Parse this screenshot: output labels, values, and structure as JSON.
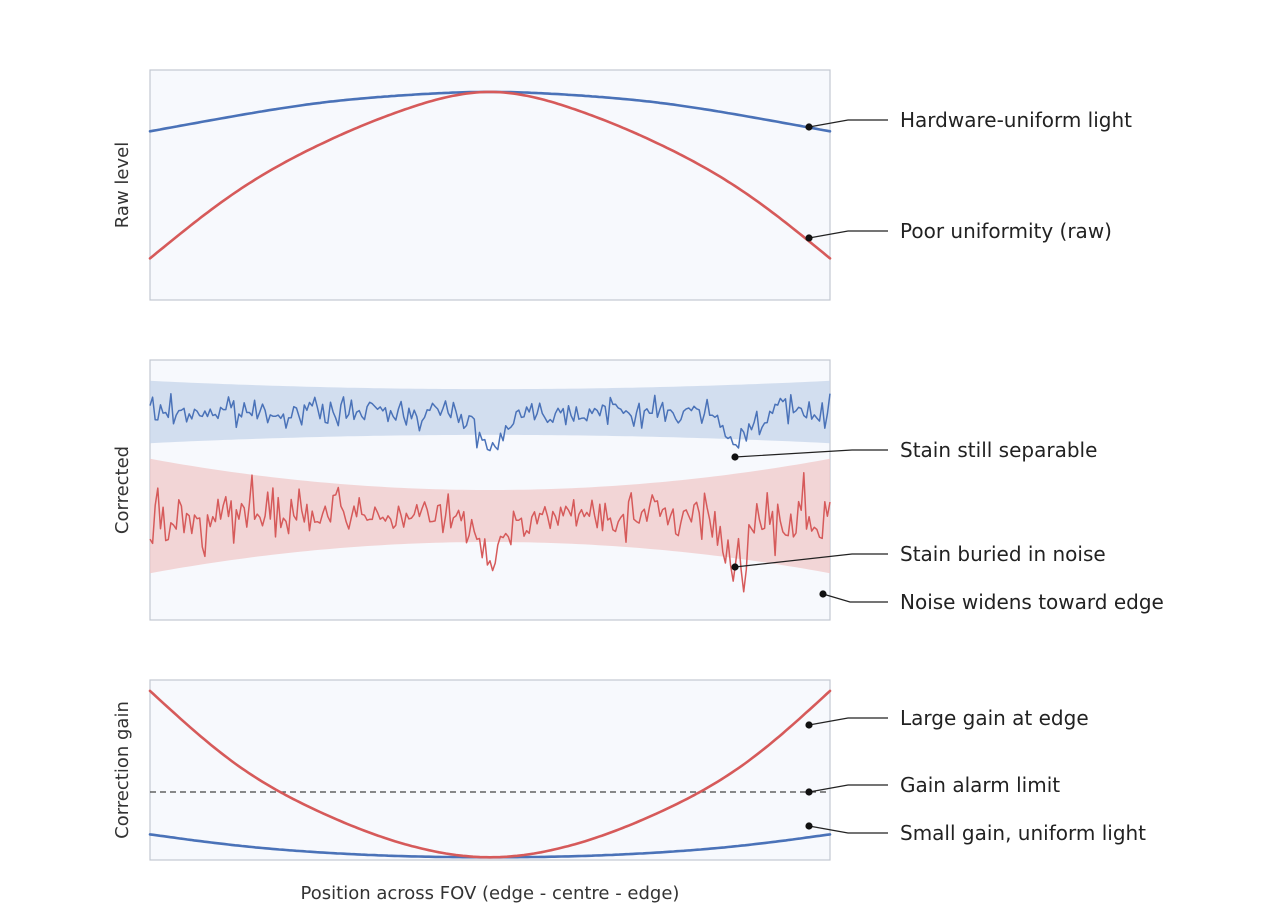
{
  "chart_data": [
    {
      "type": "line",
      "ylabel": "Raw level",
      "xlim": [
        -1,
        1
      ],
      "ylim": [
        0.0,
        1.05
      ],
      "series": [
        {
          "key": "uniform",
          "color": "#4a72b8",
          "x": [
            -1,
            -0.75,
            -0.5,
            -0.25,
            0,
            0.25,
            0.5,
            0.75,
            1
          ],
          "y": [
            0.77,
            0.84,
            0.9,
            0.935,
            0.95,
            0.935,
            0.9,
            0.84,
            0.77
          ]
        },
        {
          "key": "poor",
          "color": "#d65a5a",
          "x": [
            -1,
            -0.75,
            -0.5,
            -0.25,
            0,
            0.25,
            0.5,
            0.75,
            1
          ],
          "y": [
            0.19,
            0.49,
            0.71,
            0.87,
            0.95,
            0.87,
            0.71,
            0.49,
            0.19
          ]
        }
      ],
      "annotations": [
        {
          "text": "Hardware-uniform light",
          "x": 0.94,
          "y": 0.787
        },
        {
          "text": "Poor uniformity (raw)",
          "x": 0.94,
          "y": 0.28
        }
      ]
    },
    {
      "type": "line",
      "ylabel": "Corrected",
      "xlim": [
        -1,
        1
      ],
      "ylim": [
        -1.5,
        1.0
      ],
      "bands": [
        {
          "key": "uniform_band",
          "color": "#c5d4ea",
          "center": 0.5,
          "half_width_centre": 0.22,
          "half_width_edge": 0.3
        },
        {
          "key": "poor_band",
          "color": "#f0c8c8",
          "center": -0.5,
          "half_width_centre": 0.25,
          "half_width_edge": 0.55
        }
      ],
      "series": [
        {
          "key": "uniform_noisy",
          "color": "#4a72b8",
          "center": 0.5,
          "noise_centre": 0.07,
          "noise_edge": 0.1,
          "stain_depths": [
            0.35,
            0.3
          ]
        },
        {
          "key": "poor_noisy",
          "color": "#d65a5a",
          "center": -0.5,
          "noise_centre": 0.1,
          "noise_edge": 0.24,
          "stain_depths": [
            0.45,
            0.45
          ]
        }
      ],
      "stain_x": [
        0,
        0.72
      ],
      "annotations": [
        {
          "text": "Stain still separable",
          "x": 0.72,
          "y": 0.15
        },
        {
          "text": "Stain buried in noise",
          "x": 0.72,
          "y": -0.51
        },
        {
          "text": "Noise widens toward edge",
          "x": 0.94,
          "y": -0.75
        }
      ]
    },
    {
      "type": "line",
      "ylabel": "Correction gain",
      "xlabel": "Position across FOV (edge - centre - edge)",
      "xlim": [
        -1,
        1
      ],
      "ylim": [
        0.95,
        4.25
      ],
      "threshold": {
        "value": 2.0,
        "style": "dashed",
        "color": "#444444"
      },
      "series": [
        {
          "key": "uniform_gain",
          "color": "#4a72b8",
          "x": [
            -1,
            -0.75,
            -0.5,
            -0.25,
            0,
            0.25,
            0.5,
            0.75,
            1
          ],
          "y": [
            1.42,
            1.22,
            1.09,
            1.02,
            1.0,
            1.02,
            1.09,
            1.22,
            1.42
          ]
        },
        {
          "key": "poor_gain",
          "color": "#d65a5a",
          "x": [
            -1,
            -0.75,
            -0.5,
            -0.25,
            0,
            0.25,
            0.5,
            0.75,
            1
          ],
          "y": [
            4.05,
            2.72,
            1.83,
            1.24,
            1.0,
            1.24,
            1.83,
            2.72,
            4.05
          ]
        }
      ],
      "annotations": [
        {
          "text": "Large gain at edge",
          "x": 0.94,
          "y": 3.6
        },
        {
          "text": "Gain alarm limit",
          "x": 0.94,
          "y": 2.0
        },
        {
          "text": "Small gain, uniform light",
          "x": 0.94,
          "y": 1.45
        }
      ]
    }
  ]
}
